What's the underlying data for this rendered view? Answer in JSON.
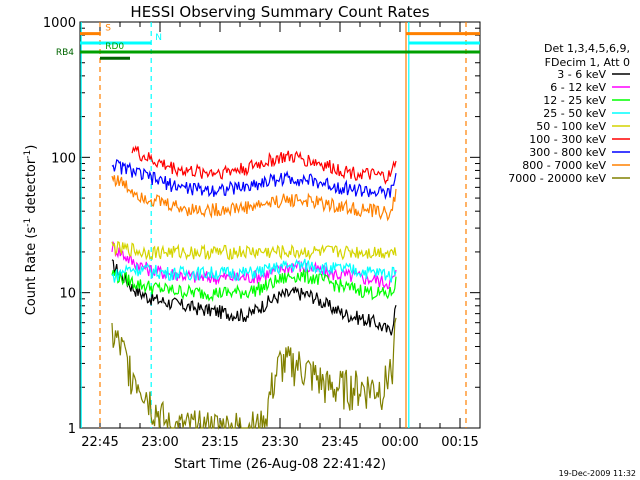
{
  "chart_data": {
    "type": "line",
    "title": "HESSI Observing Summary Count Rates",
    "xlabel": "Start Time (26-Aug-08 22:41:42)",
    "ylabel_prefix": "Count Rate (s",
    "ylabel_sup1": "-1",
    "ylabel_mid": " detector",
    "ylabel_sup2": "-1",
    "ylabel_suffix": ")",
    "footer": "19-Dec-2009 11:32",
    "x_unit": "minutes after 22:40",
    "xlim": [
      0,
      100
    ],
    "ylim": [
      1,
      1000
    ],
    "yscale": "log",
    "x_ticks": [
      {
        "value": 5,
        "label": "22:45"
      },
      {
        "value": 20,
        "label": "23:00"
      },
      {
        "value": 35,
        "label": "23:15"
      },
      {
        "value": 50,
        "label": "23:30"
      },
      {
        "value": 65,
        "label": "23:45"
      },
      {
        "value": 80,
        "label": "00:00"
      },
      {
        "value": 95,
        "label": "00:15"
      }
    ],
    "y_ticks": [
      {
        "value": 1,
        "label": "1"
      },
      {
        "value": 10,
        "label": "10"
      },
      {
        "value": 100,
        "label": "100"
      },
      {
        "value": 1000,
        "label": "1000"
      }
    ],
    "legend": {
      "header": [
        "Det 1,3,4,5,6,9,",
        "FDecim 1, Att 0"
      ],
      "placement": "right"
    },
    "flags": [
      {
        "label": "S",
        "color": "#ff8000",
        "level": 820,
        "segments": [
          [
            0,
            5.2
          ],
          [
            81.5,
            100
          ]
        ],
        "label_at": 6.3
      },
      {
        "label": "N",
        "color": "#00ffff",
        "level": 700,
        "segments": [
          [
            0,
            17.8
          ],
          [
            82.2,
            100
          ]
        ],
        "label_at": 18.8
      },
      {
        "label": "RD0",
        "color": "#00a000",
        "level": 600,
        "segments": [
          [
            0,
            100
          ]
        ],
        "label_at": 6.3
      },
      {
        "label": "RB4",
        "color": "#006400",
        "level": 540,
        "segments": [
          [
            5.0,
            12.5
          ]
        ],
        "label_at": -1.5
      }
    ],
    "vlines": [
      {
        "x": 5.0,
        "color": "#ff8000",
        "style": "dashed"
      },
      {
        "x": 17.8,
        "color": "#00ffff",
        "style": "dashed"
      },
      {
        "x": 81.5,
        "color": "#ff8000",
        "style": "solid"
      },
      {
        "x": 82.2,
        "color": "#00ffff",
        "style": "solid"
      },
      {
        "x": 96.5,
        "color": "#ff8000",
        "style": "dashed"
      },
      {
        "x": 0.3,
        "color": "#00ffff",
        "style": "solid"
      }
    ],
    "x": [
      8,
      10,
      12,
      13,
      15,
      18,
      22,
      26,
      30,
      34,
      38,
      42,
      46,
      50,
      54,
      58,
      62,
      66,
      70,
      74,
      76,
      77,
      78,
      79
    ],
    "series": [
      {
        "name": "3 - 6 keV",
        "color": "#000000",
        "start": 8,
        "values": [
          16,
          14,
          12,
          11,
          10,
          9.0,
          8.5,
          8.0,
          7.6,
          7.3,
          7.0,
          6.8,
          8.2,
          9.5,
          10.0,
          9.5,
          8.0,
          7.0,
          6.5,
          6.0,
          5.5,
          5.2,
          5.5,
          8.0
        ]
      },
      {
        "name": "6 - 12 keV",
        "color": "#ff00ff",
        "start": 8,
        "values": [
          22,
          20,
          18,
          17,
          16,
          14.5,
          14,
          13.5,
          13,
          13,
          13,
          13,
          13.5,
          15,
          16,
          15,
          14,
          13.5,
          13,
          12.5,
          12,
          12,
          12,
          14
        ]
      },
      {
        "name": "12 - 25 keV",
        "color": "#00ff00",
        "start": 8,
        "values": [
          14,
          13,
          12.5,
          12,
          11.5,
          11,
          10.5,
          10.2,
          10,
          10,
          10,
          10.2,
          11,
          12.5,
          13.5,
          13,
          12,
          11,
          10.5,
          10,
          9.8,
          9.8,
          10,
          12
        ]
      },
      {
        "name": "25 - 50 keV",
        "color": "#00ffff",
        "start": 8,
        "values": [
          13,
          14,
          15,
          15,
          15,
          14.5,
          14,
          14,
          14,
          14,
          14,
          14,
          14.5,
          15.5,
          16,
          16,
          15,
          15,
          14.5,
          14,
          14,
          13.5,
          13.5,
          16
        ]
      },
      {
        "name": "50 - 100 keV",
        "color": "#d4d400",
        "start": 8,
        "values": [
          22,
          21,
          21,
          21,
          20,
          20,
          20,
          20,
          20,
          20,
          20,
          20,
          20,
          20,
          20,
          20,
          20,
          20,
          20,
          20,
          20,
          20,
          20,
          20
        ]
      },
      {
        "name": "100 - 300 keV",
        "color": "#ff0000",
        "start": 12.5,
        "values": [
          null,
          null,
          null,
          120,
          105,
          95,
          86,
          80,
          78,
          78,
          80,
          84,
          92,
          100,
          100,
          94,
          86,
          80,
          76,
          73,
          72,
          72,
          74,
          100
        ]
      },
      {
        "name": "300 - 800 keV",
        "color": "#0000ff",
        "start": 8,
        "values": [
          90,
          85,
          82,
          80,
          75,
          70,
          64,
          60,
          58,
          58,
          59,
          61,
          66,
          70,
          70,
          67,
          63,
          60,
          57,
          55,
          54,
          54,
          56,
          75
        ]
      },
      {
        "name": "800 - 7000 keV",
        "color": "#ff8000",
        "start": 8,
        "values": [
          72,
          66,
          60,
          57,
          53,
          49,
          45,
          42,
          41,
          41,
          42,
          43,
          45,
          48,
          49,
          47,
          45,
          43,
          41,
          40,
          39,
          39,
          40,
          55
        ]
      },
      {
        "name": "7000 - 20000 keV",
        "color": "#808000",
        "start": 8,
        "values": [
          5,
          4,
          3,
          2.6,
          2.2,
          1.5,
          1,
          1,
          1,
          1,
          1,
          1,
          1,
          3,
          3,
          2.5,
          2,
          2,
          2,
          2,
          2,
          2.5,
          3,
          5
        ]
      }
    ]
  }
}
